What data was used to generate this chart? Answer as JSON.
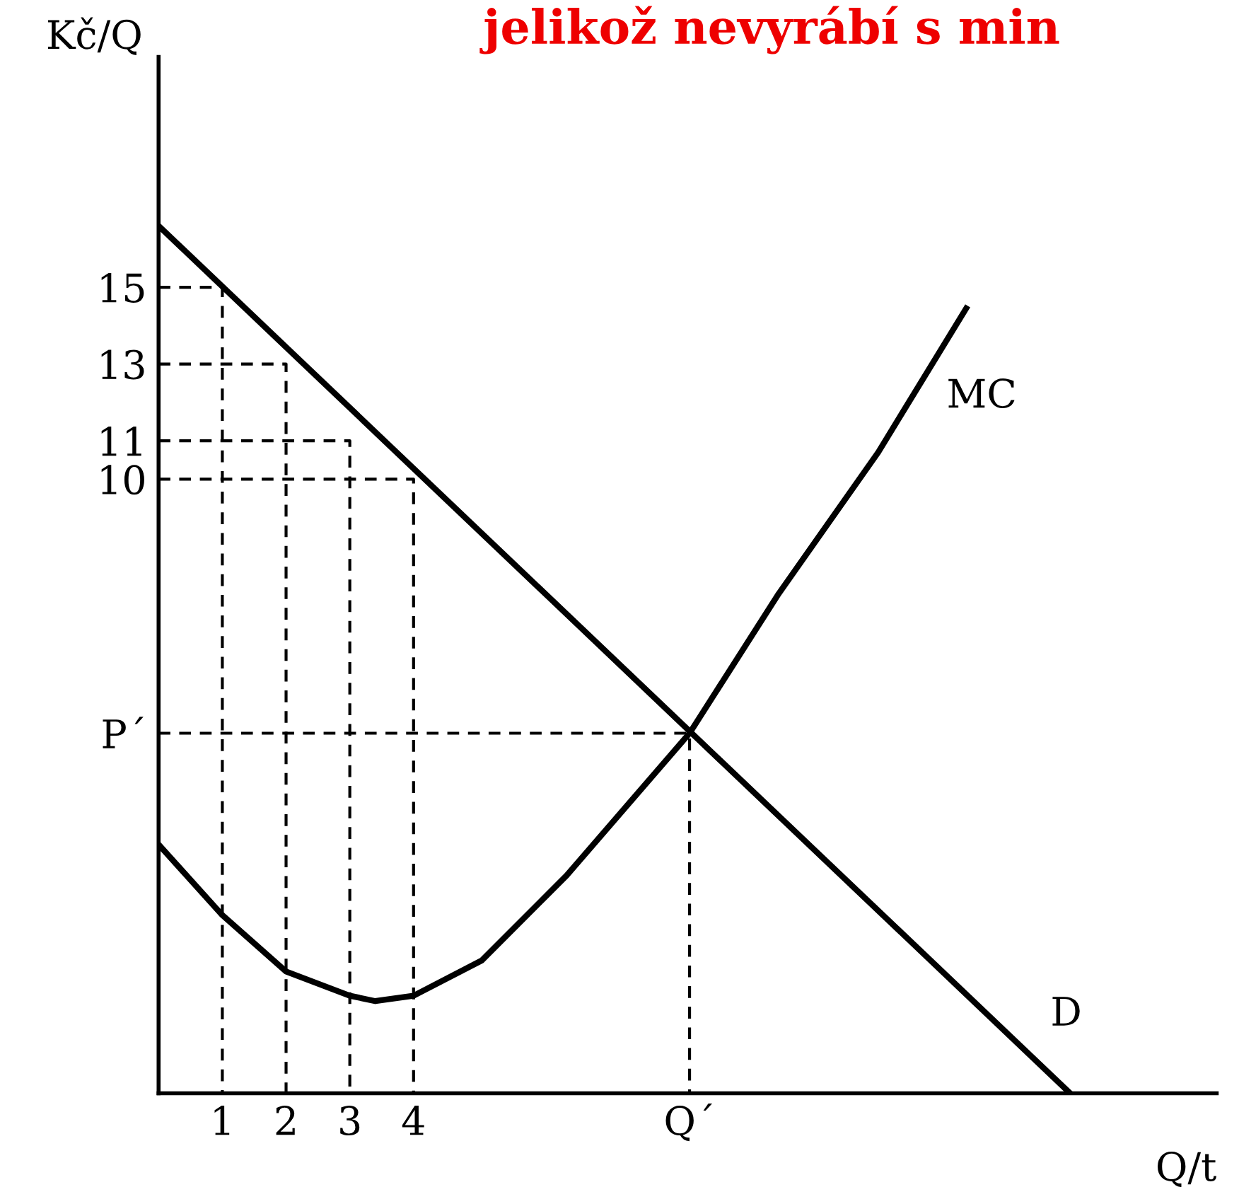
{
  "chart_data": {
    "type": "line",
    "title": "jelikož nevyrábí s min",
    "xlabel": "Q/t",
    "ylabel": "Kč/Q",
    "xlim": [
      0,
      16.6
    ],
    "ylim": [
      -6,
      21
    ],
    "xticks": [
      1,
      2,
      3,
      4,
      {
        "value": 8.33,
        "label": "Q´"
      }
    ],
    "yticks": [
      15,
      13,
      11,
      10,
      {
        "value": 3.38,
        "label": "P´"
      }
    ],
    "grid": false,
    "legend": false,
    "marker": "none",
    "series": [
      {
        "name": "D",
        "color": "#000000",
        "line_style": "solid",
        "x": [
          0,
          14.3
        ],
        "values": [
          16.6,
          -6
        ]
      },
      {
        "name": "MC",
        "color": "#000000",
        "line_style": "solid",
        "x": [
          0,
          1,
          2,
          3,
          3.4,
          4,
          5.07,
          6.4,
          8.33,
          9.73,
          11.29,
          12.67
        ],
        "values": [
          0.48,
          -1.36,
          -2.83,
          -3.46,
          -3.6,
          -3.46,
          -2.54,
          -0.33,
          3.38,
          7.02,
          10.7,
          14.45
        ]
      },
      {
        "color": "#000000",
        "line_style": "dashed",
        "x": [
          0,
          1,
          1
        ],
        "values": [
          15,
          15,
          -6
        ]
      },
      {
        "color": "#000000",
        "line_style": "dashed",
        "x": [
          0,
          2,
          2
        ],
        "values": [
          13,
          13,
          -6
        ]
      },
      {
        "color": "#000000",
        "line_style": "dashed",
        "x": [
          0,
          3,
          3
        ],
        "values": [
          11,
          11,
          -6
        ]
      },
      {
        "color": "#000000",
        "line_style": "dashed",
        "x": [
          0,
          4,
          4
        ],
        "values": [
          10,
          10,
          -6
        ]
      },
      {
        "color": "#000000",
        "line_style": "dashed",
        "x": [
          0,
          8.33,
          8.33
        ],
        "values": [
          3.38,
          3.38,
          -6
        ]
      }
    ]
  }
}
